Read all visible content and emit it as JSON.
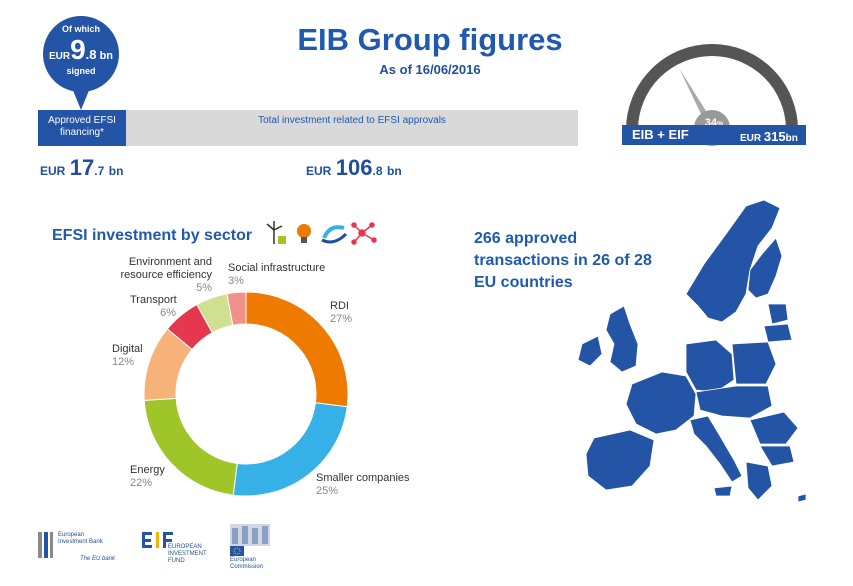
{
  "header": {
    "title": "EIB Group figures",
    "date": "As of 16/06/2016"
  },
  "signed_bubble": {
    "of_which": "Of which",
    "currency": "EUR",
    "big": "9",
    "dec": ".8",
    "unit": "bn",
    "signed": "signed"
  },
  "bar": {
    "left_label": "Approved EFSI financing*",
    "right_label": "Total investment related to EFSI approvals"
  },
  "amounts": {
    "efsi": {
      "currency": "EUR",
      "big": "17",
      "dec": ".7",
      "unit": "bn"
    },
    "total": {
      "currency": "EUR",
      "big": "106",
      "dec": ".8",
      "unit": "bn"
    }
  },
  "gauge": {
    "percent": "34",
    "percent_sign": "%",
    "value": 34,
    "label": "EIB + EIF",
    "target_currency": "EUR",
    "target": "315",
    "target_unit": "bn"
  },
  "sector": {
    "title": "EFSI investment by sector",
    "icons": [
      "wind-turbine-icon",
      "lightbulb-icon",
      "recycling-icon",
      "network-icon"
    ]
  },
  "chart_data": {
    "type": "pie",
    "donut": true,
    "categories": [
      "RDI",
      "Smaller companies",
      "Energy",
      "Digital",
      "Transport",
      "Environment and resource efficiency",
      "Social infrastructure"
    ],
    "values": [
      27,
      25,
      22,
      12,
      6,
      5,
      3
    ],
    "percent_labels": [
      "27%",
      "25%",
      "22%",
      "12%",
      "6%",
      "5%",
      "3%"
    ],
    "colors": [
      "#ee7a00",
      "#35b1e8",
      "#9fc628",
      "#f7b27a",
      "#e5384f",
      "#cfe090",
      "#f2918a"
    ]
  },
  "map": {
    "text": "266 approved transactions in 26 of 28 EU countries"
  },
  "logos": {
    "eib": "European Investment Bank",
    "eib_tag": "The EU bank",
    "eif": "EUROPEAN INVESTMENT FUND",
    "ec": "European Commission"
  }
}
